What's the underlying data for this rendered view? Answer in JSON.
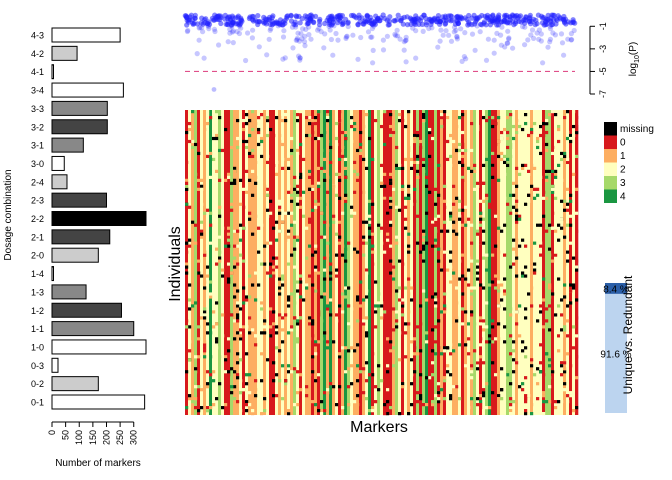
{
  "chart_data": [
    {
      "type": "bar",
      "orientation": "horizontal",
      "categories": [
        "4-3",
        "4-2",
        "4-1",
        "3-4",
        "3-3",
        "3-2",
        "3-1",
        "3-0",
        "2-4",
        "2-3",
        "2-2",
        "2-1",
        "2-0",
        "1-4",
        "1-3",
        "1-2",
        "1-1",
        "1-0",
        "0-3",
        "0-2",
        "0-1"
      ],
      "values": [
        250,
        92,
        5,
        262,
        203,
        203,
        115,
        45,
        55,
        200,
        345,
        212,
        170,
        5,
        125,
        255,
        300,
        345,
        22,
        170,
        340
      ],
      "colors": [
        "#ffffff",
        "#cccccc",
        "#ffffff",
        "#ffffff",
        "#888888",
        "#444444",
        "#888888",
        "#ffffff",
        "#cccccc",
        "#444444",
        "#000000",
        "#444444",
        "#cccccc",
        "#ffffff",
        "#888888",
        "#444444",
        "#888888",
        "#ffffff",
        "#ffffff",
        "#cccccc",
        "#ffffff"
      ],
      "xlabel": "Number of markers",
      "ylabel": "Dosage combination",
      "xticks": [
        0,
        50,
        100,
        150,
        200,
        250,
        300
      ],
      "xlim": [
        0,
        345
      ]
    },
    {
      "type": "scatter",
      "ylabel_main": "log",
      "ylabel_sub": "10",
      "ylabel_tail": "(P)",
      "yticks": [
        -1,
        -3,
        -5,
        -7
      ],
      "ylim": [
        -7,
        0
      ],
      "threshold": -5,
      "threshold_color": "#e0508a",
      "point_color": "#2020ff"
    },
    {
      "type": "heatmap",
      "xlabel": "Markers",
      "ylabel": "Individuals",
      "legend": [
        {
          "label": "missing",
          "color": "#000000"
        },
        {
          "label": "0",
          "color": "#d7191c"
        },
        {
          "label": "1",
          "color": "#fdae61"
        },
        {
          "label": "2",
          "color": "#ffffbf"
        },
        {
          "label": "3",
          "color": "#a6d96a"
        },
        {
          "label": "4",
          "color": "#1a9641"
        }
      ]
    },
    {
      "type": "bar",
      "orientation": "stacked",
      "title": "Unique vs. Redundant",
      "series": [
        {
          "label": "8.4 %",
          "value": 8.4,
          "color": "#2b5fa8"
        },
        {
          "label": "91.6 %",
          "value": 91.6,
          "color": "#bcd4ef"
        }
      ]
    }
  ]
}
